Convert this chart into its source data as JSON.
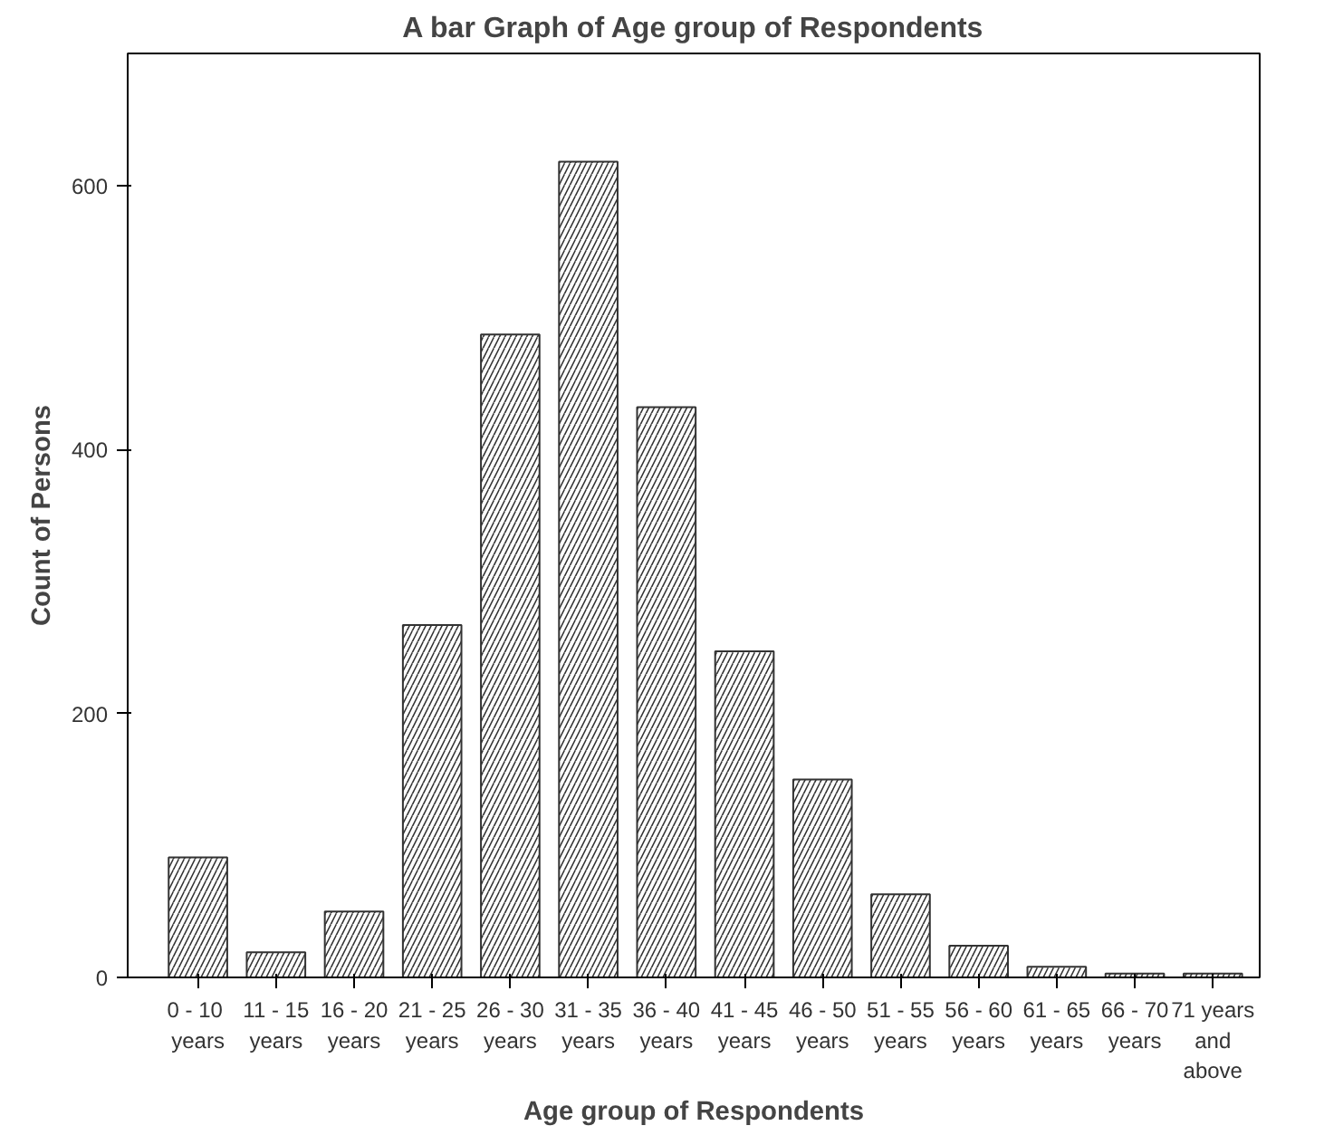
{
  "chart_data": {
    "type": "bar",
    "title": "A bar Graph of Age group of Respondents",
    "xlabel": "Age group of Respondents",
    "ylabel": "Count of Persons",
    "categories": [
      "0  - 10\nyears",
      "11 - 15\nyears",
      "16 - 20\nyears",
      "21 - 25\nyears",
      "26 - 30\nyears",
      "31 - 35\nyears",
      "36 - 40\nyears",
      "41 - 45\nyears",
      "46 - 50\nyears",
      "51 - 55\nyears",
      "56 - 60\nyears",
      "61 - 65\nyears",
      "66 - 70\nyears",
      "71 years\nand\nabove"
    ],
    "values": [
      91,
      19,
      50,
      267,
      487,
      618,
      432,
      247,
      150,
      63,
      24,
      8,
      3,
      3
    ],
    "color": "#ffffff",
    "ylim": [
      0,
      700
    ],
    "yticks": [
      0,
      200,
      400,
      600
    ],
    "grid": false
  }
}
